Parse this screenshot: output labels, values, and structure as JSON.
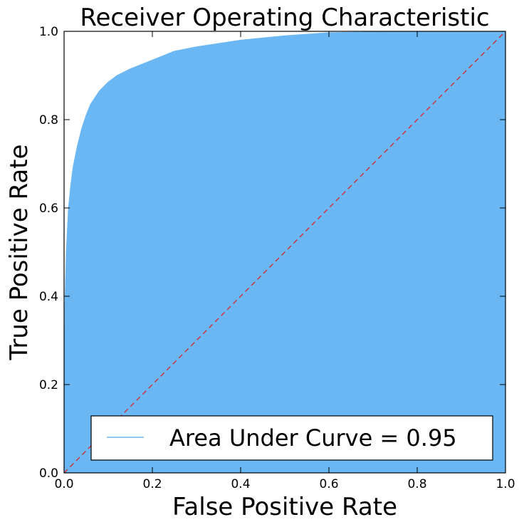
{
  "chart_data": {
    "type": "area",
    "title": "Receiver Operating Characteristic",
    "xlabel": "False Positive Rate",
    "ylabel": "True Positive Rate",
    "xlim": [
      0.0,
      1.0
    ],
    "ylim": [
      0.0,
      1.0
    ],
    "xticks": [
      "0.0",
      "0.2",
      "0.4",
      "0.6",
      "0.8",
      "1.0"
    ],
    "yticks": [
      "0.0",
      "0.2",
      "0.4",
      "0.6",
      "0.8",
      "1.0"
    ],
    "grid": false,
    "legend_position": "lower-right",
    "series": [
      {
        "name": "Area Under Curve = 0.95",
        "color": "#6ab7f3",
        "fill": true,
        "x": [
          0.0,
          0.002,
          0.005,
          0.01,
          0.015,
          0.02,
          0.03,
          0.04,
          0.05,
          0.06,
          0.08,
          0.1,
          0.12,
          0.15,
          0.2,
          0.25,
          0.3,
          0.4,
          0.5,
          0.6,
          0.8,
          1.0
        ],
        "y": [
          0.0,
          0.38,
          0.5,
          0.6,
          0.65,
          0.69,
          0.74,
          0.78,
          0.81,
          0.835,
          0.865,
          0.885,
          0.9,
          0.915,
          0.935,
          0.955,
          0.965,
          0.98,
          0.99,
          0.997,
          1.0,
          1.0
        ]
      },
      {
        "color": "#dd2222",
        "dashed": true,
        "x": [
          0.0,
          1.0
        ],
        "y": [
          0.0,
          1.0
        ]
      }
    ]
  }
}
